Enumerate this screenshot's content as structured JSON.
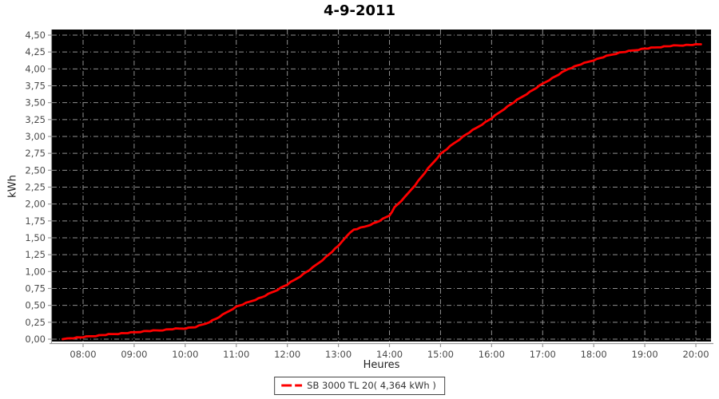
{
  "title": "4-9-2011",
  "axes": {
    "x_label": "Heures",
    "y_label": "kWh"
  },
  "legend": {
    "label": "SB 3000 TL 20( 4,364 kWh )"
  },
  "colors": {
    "line": "#ff0000",
    "plot_background": "#000000",
    "grid": "#8f8f8f",
    "axis": "#999999",
    "tick_text": "#4a4a4a",
    "title_text": "#000000",
    "legend_border": "#444444",
    "legend_text": "#333333"
  },
  "chart_data": {
    "type": "line",
    "title": "4-9-2011",
    "xlabel": "Heures",
    "ylabel": "kWh",
    "grid": true,
    "legend_position": "bottom-center",
    "plot_background": "#000000",
    "x_range_hours": [
      7.39,
      20.3
    ],
    "y_range": [
      0,
      4.5
    ],
    "x_tick_hours": [
      8,
      9,
      10,
      11,
      12,
      13,
      14,
      15,
      16,
      17,
      18,
      19,
      20
    ],
    "x_tick_labels": [
      "08:00",
      "09:00",
      "10:00",
      "11:00",
      "12:00",
      "13:00",
      "14:00",
      "15:00",
      "16:00",
      "17:00",
      "18:00",
      "19:00",
      "20:00"
    ],
    "y_tick_values": [
      0,
      0.25,
      0.5,
      0.75,
      1,
      1.25,
      1.5,
      1.75,
      2,
      2.25,
      2.5,
      2.75,
      3,
      3.25,
      3.5,
      3.75,
      4,
      4.25,
      4.5
    ],
    "y_tick_labels": [
      "0,00",
      "0,25",
      "0,50",
      "0,75",
      "1,00",
      "1,25",
      "1,50",
      "1,75",
      "2,00",
      "2,25",
      "2,50",
      "2,75",
      "3,00",
      "3,25",
      "3,50",
      "3,75",
      "4,00",
      "4,25",
      "4,50"
    ],
    "series": [
      {
        "name": "SB 3000 TL 20( 4,364 kWh )",
        "color": "#ff0000",
        "points_hour_kwh": [
          [
            7.6,
            0.0
          ],
          [
            7.75,
            0.015
          ],
          [
            8.0,
            0.03
          ],
          [
            8.25,
            0.05
          ],
          [
            8.5,
            0.07
          ],
          [
            8.75,
            0.085
          ],
          [
            9.0,
            0.1
          ],
          [
            9.25,
            0.12
          ],
          [
            9.5,
            0.13
          ],
          [
            9.75,
            0.15
          ],
          [
            10.0,
            0.16
          ],
          [
            10.2,
            0.18
          ],
          [
            10.4,
            0.23
          ],
          [
            10.6,
            0.3
          ],
          [
            10.8,
            0.39
          ],
          [
            11.0,
            0.48
          ],
          [
            11.25,
            0.55
          ],
          [
            11.5,
            0.62
          ],
          [
            11.75,
            0.71
          ],
          [
            12.0,
            0.81
          ],
          [
            12.25,
            0.93
          ],
          [
            12.5,
            1.06
          ],
          [
            12.75,
            1.21
          ],
          [
            13.0,
            1.38
          ],
          [
            13.15,
            1.52
          ],
          [
            13.3,
            1.62
          ],
          [
            13.5,
            1.66
          ],
          [
            13.75,
            1.73
          ],
          [
            14.0,
            1.83
          ],
          [
            14.1,
            1.95
          ],
          [
            14.3,
            2.1
          ],
          [
            14.5,
            2.28
          ],
          [
            14.75,
            2.52
          ],
          [
            15.0,
            2.74
          ],
          [
            15.25,
            2.89
          ],
          [
            15.5,
            3.03
          ],
          [
            15.75,
            3.15
          ],
          [
            16.0,
            3.27
          ],
          [
            16.25,
            3.41
          ],
          [
            16.5,
            3.54
          ],
          [
            16.75,
            3.66
          ],
          [
            17.0,
            3.78
          ],
          [
            17.25,
            3.89
          ],
          [
            17.5,
            4.0
          ],
          [
            17.75,
            4.07
          ],
          [
            18.0,
            4.13
          ],
          [
            18.25,
            4.19
          ],
          [
            18.5,
            4.24
          ],
          [
            18.75,
            4.27
          ],
          [
            19.0,
            4.3
          ],
          [
            19.25,
            4.32
          ],
          [
            19.5,
            4.34
          ],
          [
            19.75,
            4.35
          ],
          [
            20.0,
            4.36
          ],
          [
            20.1,
            4.364
          ]
        ]
      }
    ]
  }
}
